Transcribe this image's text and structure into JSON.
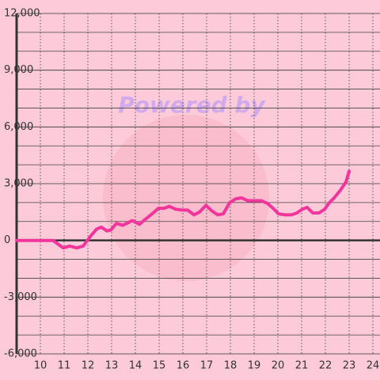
{
  "chart_data": {
    "type": "line",
    "watermark": "Powered by",
    "x": [
      9.0,
      10.53,
      10.97,
      11.23,
      11.53,
      11.8,
      12.13,
      12.37,
      12.57,
      12.8,
      12.97,
      13.2,
      13.47,
      13.63,
      13.87,
      14.17,
      14.4,
      14.7,
      14.97,
      15.2,
      15.43,
      15.7,
      15.97,
      16.2,
      16.47,
      16.7,
      16.97,
      17.23,
      17.47,
      17.7,
      17.97,
      18.23,
      18.47,
      18.73,
      19.03,
      19.3,
      19.57,
      19.8,
      20.03,
      20.3,
      20.57,
      20.8,
      21.03,
      21.23,
      21.47,
      21.73,
      21.97,
      22.17,
      22.37,
      22.63,
      22.87,
      23.0
    ],
    "values": [
      0,
      0,
      -400,
      -300,
      -400,
      -300,
      250,
      600,
      700,
      500,
      550,
      900,
      800,
      900,
      1050,
      850,
      1100,
      1400,
      1700,
      1700,
      1800,
      1650,
      1600,
      1600,
      1350,
      1500,
      1850,
      1550,
      1350,
      1400,
      2000,
      2200,
      2250,
      2100,
      2100,
      2100,
      1950,
      1700,
      1400,
      1350,
      1350,
      1450,
      1650,
      1750,
      1450,
      1450,
      1650,
      2000,
      2250,
      2650,
      3100,
      3650
    ],
    "color": "#f2359b",
    "xlim": [
      9,
      24.3
    ],
    "xticks": [
      10,
      11,
      12,
      13,
      14,
      15,
      16,
      17,
      18,
      19,
      20,
      21,
      22,
      23,
      24
    ],
    "ylim": [
      -6000,
      12000
    ],
    "yticks": [
      {
        "value": -6000,
        "label": "-6,000"
      },
      {
        "value": -3000,
        "label": "-3,000"
      },
      0,
      {
        "value": 3000,
        "label": "3,000"
      },
      {
        "value": 6000,
        "label": "6,000"
      },
      {
        "value": 9000,
        "label": "9,000"
      },
      {
        "value": 12000,
        "label": "12,000"
      }
    ],
    "minor_yticks": [
      -5000,
      -4000,
      -2000,
      -1000,
      1000,
      2000,
      4000,
      5000,
      7000,
      8000,
      10000,
      11000
    ],
    "grid": true
  }
}
